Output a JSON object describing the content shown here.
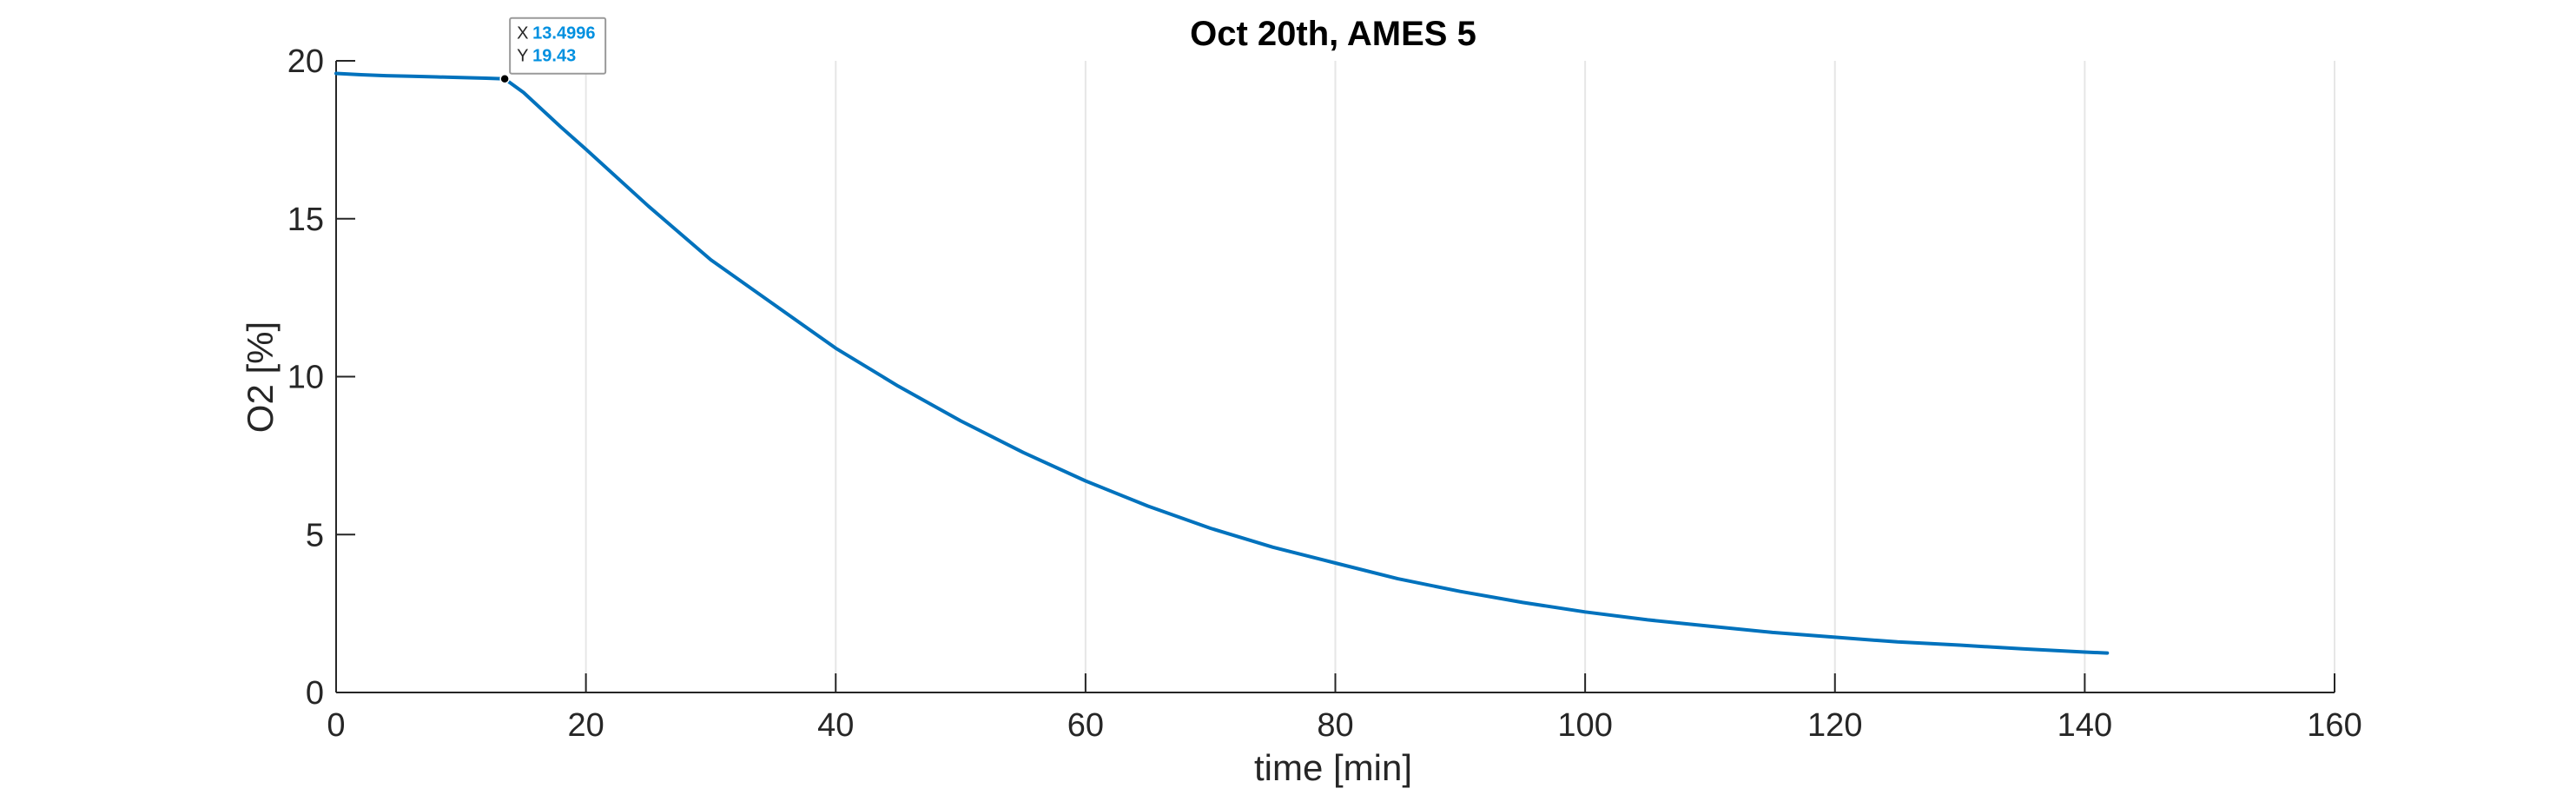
{
  "chart_data": {
    "type": "line",
    "title": "Oct 20th, AMES 5",
    "xlabel": "time [min]",
    "ylabel": "O2  [%]",
    "xlim": [
      0,
      160
    ],
    "ylim": [
      0,
      20
    ],
    "xticks": [
      0,
      20,
      40,
      60,
      80,
      100,
      120,
      140,
      160
    ],
    "yticks": [
      0,
      5,
      10,
      15,
      20
    ],
    "xtick_labels": [
      "0",
      "20",
      "40",
      "60",
      "80",
      "100",
      "120",
      "140",
      "160"
    ],
    "ytick_labels": [
      "0",
      "5",
      "10",
      "15",
      "20"
    ],
    "grid": "x-major",
    "line_color": "#0072BD",
    "series": [
      {
        "x": [
          0,
          2,
          4,
          6,
          8,
          10,
          12,
          13.4996,
          15,
          18,
          20,
          25,
          30,
          35,
          40,
          45,
          50,
          55,
          60,
          65,
          70,
          75,
          80,
          85,
          90,
          95,
          100,
          105,
          110,
          115,
          120,
          125,
          130,
          135,
          140,
          141.8
        ],
        "y": [
          19.6,
          19.56,
          19.53,
          19.51,
          19.49,
          19.47,
          19.45,
          19.43,
          19.0,
          17.9,
          17.2,
          15.4,
          13.7,
          12.3,
          10.9,
          9.7,
          8.6,
          7.6,
          6.7,
          5.9,
          5.2,
          4.6,
          4.1,
          3.6,
          3.2,
          2.85,
          2.55,
          2.3,
          2.1,
          1.9,
          1.75,
          1.6,
          1.5,
          1.38,
          1.28,
          1.25
        ]
      }
    ],
    "datatip": {
      "x_key": "X",
      "y_key": "Y",
      "x": 13.4996,
      "y": 19.43,
      "x_text": "13.4996",
      "y_text": "19.43",
      "value_color": "#0090E0"
    }
  }
}
